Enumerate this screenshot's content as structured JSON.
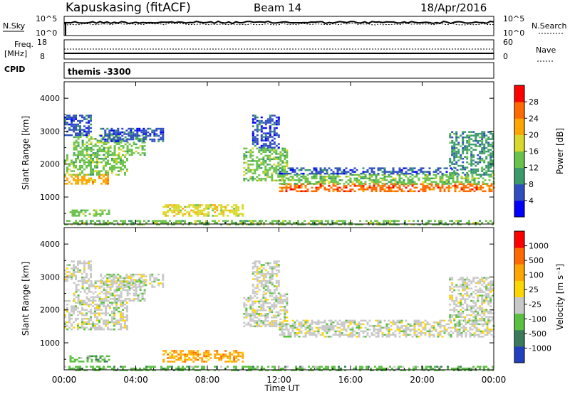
{
  "header": {
    "station": "Kapuskasing (fitACF)",
    "beam": "Beam 14",
    "date": "18/Apr/2016"
  },
  "top_panels": {
    "nsky_label": "N.Sky",
    "nsky_ticks": [
      "10^5",
      "10^0"
    ],
    "nsearch_label": "N.Search",
    "nsearch_ticks": [
      "10^5",
      "10^0"
    ],
    "freq_label": "Freq.",
    "freq_unit": "[MHz]",
    "freq_ticks": [
      "18",
      "8"
    ],
    "nave_label": "Nave",
    "nave_ticks": [
      "60",
      "0"
    ],
    "cpid_label": "CPID",
    "cpid_value": "themis -3300"
  },
  "chart_data": [
    {
      "type": "heatmap",
      "name": "power",
      "ylabel": "Slant Range [km]",
      "xlabel": "Time UT",
      "xlim_hours": [
        0,
        24
      ],
      "ylim_km": [
        180,
        4500
      ],
      "x_ticks": [
        "00:00",
        "04:00",
        "08:00",
        "12:00",
        "16:00",
        "20:00",
        "00:00"
      ],
      "y_ticks": [
        1000,
        2000,
        3000,
        4000
      ],
      "colorbar": {
        "label": "Power [dB]",
        "ticks": [
          "28",
          "24",
          "20",
          "16",
          "12",
          "8",
          "4"
        ],
        "colors": [
          "#0000ff",
          "#2f4fbf",
          "#3a9a6a",
          "#6bc24a",
          "#d8d82a",
          "#ffa500",
          "#ff6a00",
          "#ff0000"
        ]
      },
      "regions": [
        {
          "t0": 0.0,
          "t1": 2.5,
          "r0": 1420,
          "r1": 1700,
          "level": 5
        },
        {
          "t0": 0.0,
          "t1": 3.5,
          "r0": 1700,
          "r1": 2300,
          "level": 3
        },
        {
          "t0": 0.5,
          "t1": 4.5,
          "r0": 2300,
          "r1": 2900,
          "level": 3
        },
        {
          "t0": 0.0,
          "t1": 1.5,
          "r0": 2900,
          "r1": 3500,
          "level": 1
        },
        {
          "t0": 2.0,
          "t1": 5.5,
          "r0": 2700,
          "r1": 3100,
          "level": 1
        },
        {
          "t0": 0.3,
          "t1": 2.5,
          "r0": 430,
          "r1": 620,
          "level": 3
        },
        {
          "t0": 5.5,
          "t1": 10.0,
          "r0": 450,
          "r1": 780,
          "level": 4
        },
        {
          "t0": 10.0,
          "t1": 12.5,
          "r0": 1500,
          "r1": 2500,
          "level": 3
        },
        {
          "t0": 10.5,
          "t1": 12.0,
          "r0": 2500,
          "r1": 3500,
          "level": 1
        },
        {
          "t0": 12.0,
          "t1": 24.0,
          "r0": 1200,
          "r1": 1420,
          "level": 6
        },
        {
          "t0": 12.0,
          "t1": 24.0,
          "r0": 1420,
          "r1": 1700,
          "level": 3
        },
        {
          "t0": 12.0,
          "t1": 22.0,
          "r0": 1700,
          "r1": 1900,
          "level": 1
        },
        {
          "t0": 21.5,
          "t1": 24.0,
          "r0": 1700,
          "r1": 3000,
          "level": 2
        },
        {
          "t0": 0.0,
          "t1": 24.0,
          "r0": 180,
          "r1": 300,
          "level": 3
        }
      ]
    },
    {
      "type": "heatmap",
      "name": "velocity",
      "ylabel": "Slant Range [km]",
      "xlabel": "Time UT",
      "xlim_hours": [
        0,
        24
      ],
      "ylim_km": [
        180,
        4500
      ],
      "x_ticks": [
        "00:00",
        "04:00",
        "08:00",
        "12:00",
        "16:00",
        "20:00",
        "00:00"
      ],
      "y_ticks": [
        1000,
        2000,
        3000,
        4000
      ],
      "colorbar": {
        "label": "Velocity [m s⁻¹]",
        "ticks": [
          "1000",
          "500",
          "100",
          "25",
          "-25",
          "-100",
          "-500",
          "-1000"
        ],
        "colors": [
          "#2040c0",
          "#3a7a5a",
          "#5ac040",
          "#c8c8c8",
          "#ffd700",
          "#ffa500",
          "#ff6a00",
          "#ff0000"
        ]
      },
      "regions": [
        {
          "t0": 0.0,
          "t1": 3.5,
          "r0": 1420,
          "r1": 2300,
          "level": 3
        },
        {
          "t0": 0.5,
          "t1": 4.5,
          "r0": 2300,
          "r1": 2900,
          "level": 3
        },
        {
          "t0": 0.0,
          "t1": 1.5,
          "r0": 2900,
          "r1": 3500,
          "level": 3
        },
        {
          "t0": 2.0,
          "t1": 5.5,
          "r0": 2700,
          "r1": 3100,
          "level": 3
        },
        {
          "t0": 0.3,
          "t1": 2.5,
          "r0": 430,
          "r1": 620,
          "level": 2
        },
        {
          "t0": 5.5,
          "t1": 10.0,
          "r0": 450,
          "r1": 780,
          "level": 5
        },
        {
          "t0": 10.0,
          "t1": 12.5,
          "r0": 1500,
          "r1": 2500,
          "level": 3
        },
        {
          "t0": 10.5,
          "t1": 12.0,
          "r0": 2500,
          "r1": 3500,
          "level": 3
        },
        {
          "t0": 12.0,
          "t1": 24.0,
          "r0": 1200,
          "r1": 1700,
          "level": 3
        },
        {
          "t0": 21.5,
          "t1": 24.0,
          "r0": 1700,
          "r1": 3000,
          "level": 3
        },
        {
          "t0": 0.0,
          "t1": 24.0,
          "r0": 180,
          "r1": 300,
          "level": 2
        }
      ]
    }
  ]
}
